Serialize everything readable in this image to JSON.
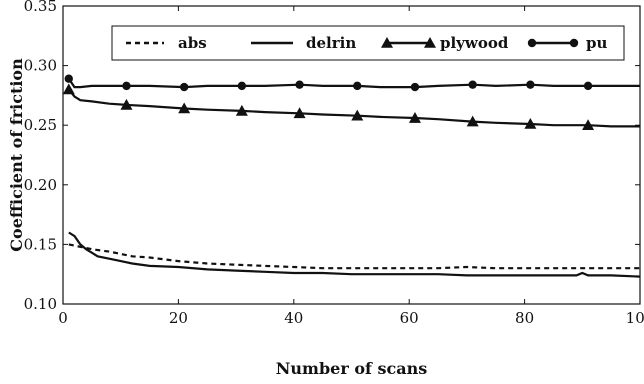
{
  "chart_data": {
    "type": "line",
    "title": "",
    "xlabel": "Number of scans",
    "ylabel": "Coefficient of friction",
    "xlim": [
      0,
      100
    ],
    "ylim": [
      0.1,
      0.35
    ],
    "x_ticks": [
      0,
      20,
      40,
      60,
      80,
      100
    ],
    "y_ticks": [
      0.1,
      0.15,
      0.2,
      0.25,
      0.3,
      0.35
    ],
    "x_tick_labels": [
      "0",
      "20",
      "40",
      "60",
      "80",
      "100"
    ],
    "y_tick_labels": [
      "0.10",
      "0.15",
      "0.20",
      "0.25",
      "0.30",
      "0.35"
    ],
    "grid": false,
    "legend_position": "top",
    "series": [
      {
        "name": "abs",
        "line_style": "dashed",
        "marker": "none",
        "color": "#111111",
        "x": [
          1,
          3,
          5,
          8,
          10,
          12,
          15,
          20,
          25,
          30,
          35,
          40,
          45,
          50,
          55,
          60,
          65,
          70,
          75,
          80,
          85,
          90,
          95,
          100
        ],
        "y": [
          0.15,
          0.148,
          0.146,
          0.144,
          0.142,
          0.14,
          0.139,
          0.136,
          0.134,
          0.133,
          0.132,
          0.131,
          0.13,
          0.13,
          0.13,
          0.13,
          0.13,
          0.131,
          0.13,
          0.13,
          0.13,
          0.13,
          0.13,
          0.13
        ]
      },
      {
        "name": "delrin",
        "line_style": "solid",
        "marker": "none",
        "color": "#111111",
        "x": [
          1,
          2,
          3,
          4,
          5,
          6,
          8,
          10,
          12,
          15,
          20,
          25,
          30,
          35,
          40,
          45,
          50,
          55,
          60,
          65,
          70,
          75,
          80,
          85,
          89,
          90,
          91,
          95,
          100
        ],
        "y": [
          0.16,
          0.157,
          0.15,
          0.146,
          0.143,
          0.14,
          0.138,
          0.136,
          0.134,
          0.132,
          0.131,
          0.129,
          0.128,
          0.127,
          0.126,
          0.126,
          0.125,
          0.125,
          0.125,
          0.125,
          0.124,
          0.124,
          0.124,
          0.124,
          0.124,
          0.126,
          0.124,
          0.124,
          0.123
        ]
      },
      {
        "name": "plywood",
        "line_style": "solid",
        "marker": "triangle",
        "color": "#111111",
        "x": [
          1,
          2,
          3,
          5,
          8,
          11,
          15,
          21,
          25,
          31,
          35,
          41,
          45,
          51,
          55,
          61,
          65,
          71,
          75,
          81,
          85,
          91,
          95,
          100
        ],
        "y": [
          0.28,
          0.274,
          0.271,
          0.27,
          0.268,
          0.267,
          0.266,
          0.264,
          0.263,
          0.262,
          0.261,
          0.26,
          0.259,
          0.258,
          0.257,
          0.256,
          0.255,
          0.253,
          0.252,
          0.251,
          0.25,
          0.25,
          0.249,
          0.249
        ]
      },
      {
        "name": "pu",
        "line_style": "solid",
        "marker": "circle",
        "color": "#111111",
        "x": [
          1,
          2,
          3,
          5,
          8,
          11,
          15,
          21,
          25,
          31,
          35,
          41,
          45,
          51,
          55,
          61,
          65,
          71,
          75,
          81,
          85,
          91,
          95,
          100
        ],
        "y": [
          0.289,
          0.282,
          0.282,
          0.283,
          0.283,
          0.283,
          0.283,
          0.282,
          0.283,
          0.283,
          0.283,
          0.284,
          0.283,
          0.283,
          0.282,
          0.282,
          0.283,
          0.284,
          0.283,
          0.284,
          0.283,
          0.283,
          0.283,
          0.283
        ],
        "marker_x": [
          1,
          11,
          21,
          31,
          41,
          51,
          61,
          71,
          81,
          91
        ]
      }
    ]
  }
}
